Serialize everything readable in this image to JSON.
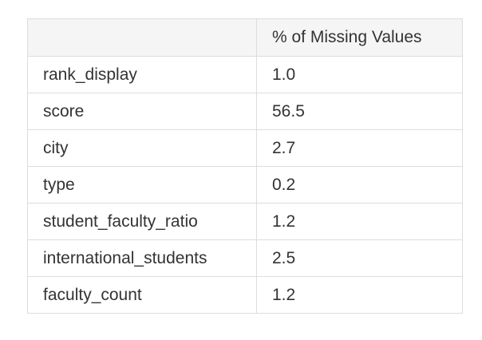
{
  "table": {
    "header": [
      "",
      "% of Missing Values"
    ],
    "rows": [
      {
        "name": "rank_display",
        "value": "1.0"
      },
      {
        "name": "score",
        "value": "56.5"
      },
      {
        "name": "city",
        "value": "2.7"
      },
      {
        "name": "type",
        "value": "0.2"
      },
      {
        "name": "student_faculty_ratio",
        "value": "1.2"
      },
      {
        "name": "international_students",
        "value": "2.5"
      },
      {
        "name": "faculty_count",
        "value": "1.2"
      }
    ]
  },
  "colors": {
    "header_bg": "#f5f5f5",
    "border": "#dddddd",
    "text": "#333333"
  }
}
